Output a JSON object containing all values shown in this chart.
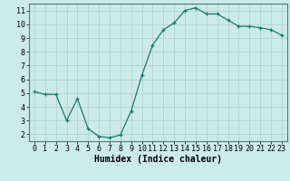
{
  "x": [
    0,
    1,
    2,
    3,
    4,
    5,
    6,
    7,
    8,
    9,
    10,
    11,
    12,
    13,
    14,
    15,
    16,
    17,
    18,
    19,
    20,
    21,
    22,
    23
  ],
  "y": [
    5.1,
    4.9,
    4.9,
    3.0,
    4.6,
    2.4,
    1.85,
    1.75,
    1.95,
    3.7,
    6.3,
    8.5,
    9.6,
    10.1,
    11.0,
    11.2,
    10.75,
    10.75,
    10.3,
    9.85,
    9.85,
    9.75,
    9.6,
    9.2
  ],
  "line_color": "#1a7a6e",
  "marker": "+",
  "marker_size": 3,
  "bg_color": "#cceae8",
  "grid_color": "#b0d4d0",
  "xlabel": "Humidex (Indice chaleur)",
  "xlabel_fontsize": 7,
  "tick_fontsize": 6,
  "ylim": [
    1.5,
    11.5
  ],
  "xlim": [
    -0.5,
    23.5
  ],
  "yticks": [
    2,
    3,
    4,
    5,
    6,
    7,
    8,
    9,
    10,
    11
  ],
  "xticks": [
    0,
    1,
    2,
    3,
    4,
    5,
    6,
    7,
    8,
    9,
    10,
    11,
    12,
    13,
    14,
    15,
    16,
    17,
    18,
    19,
    20,
    21,
    22,
    23
  ]
}
